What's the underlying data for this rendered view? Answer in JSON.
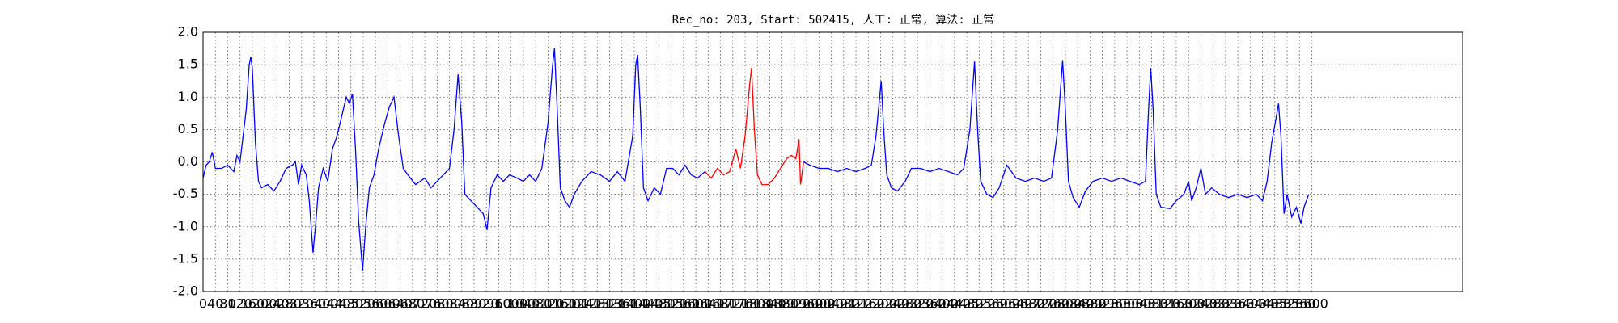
{
  "chart_data": {
    "type": "line",
    "title": "Rec_no: 203, Start: 502415, 人工: 正常, 算法: 正常",
    "xlim": [
      0,
      4090
    ],
    "ylim": [
      -2,
      2
    ],
    "xticks": [
      0,
      40,
      80,
      120,
      160,
      200,
      240,
      280,
      320,
      360,
      400,
      440,
      480,
      520,
      560,
      600,
      640,
      680,
      720,
      760,
      800,
      840,
      880,
      920,
      960,
      1000,
      1040,
      1080,
      1120,
      1160,
      1200,
      1240,
      1280,
      1320,
      1360,
      1400,
      1440,
      1480,
      1520,
      1560,
      1600,
      1640,
      1680,
      1720,
      1760,
      1800,
      1840,
      1880,
      1920,
      1960,
      2000,
      2040,
      2080,
      2120,
      2160,
      2200,
      2240,
      2280,
      2320,
      2360,
      2400,
      2440,
      2480,
      2520,
      2560,
      2600,
      2640,
      2680,
      2720,
      2760,
      2800,
      2840,
      2880,
      2920,
      2960,
      3000,
      3040,
      3080,
      3120,
      3160,
      3200,
      3240,
      3280,
      3320,
      3360,
      3400,
      3440,
      3480,
      3520,
      3560,
      3600
    ],
    "yticks": [
      {
        "value": -2,
        "label": "-2.0"
      },
      -1.5,
      {
        "value": -1,
        "label": "-1.0"
      },
      -0.5,
      {
        "value": 0,
        "label": "0.0"
      },
      0.5,
      {
        "value": 1,
        "label": "1.0"
      },
      1.5,
      {
        "value": 2,
        "label": "2.0"
      }
    ],
    "grid": true,
    "series": [
      {
        "color": "#0000ff",
        "x": [
          0,
          10,
          20,
          30,
          40,
          60,
          80,
          100,
          110,
          120,
          130,
          140,
          150,
          155,
          160,
          170,
          180,
          190,
          210,
          230,
          250,
          270,
          290,
          300,
          310,
          320,
          335,
          345,
          357,
          365,
          375,
          390,
          405,
          420,
          435,
          450,
          465,
          475,
          485,
          495,
          505,
          518,
          528,
          540,
          555,
          570,
          590,
          605,
          620,
          635,
          650,
          665,
          690,
          720,
          740,
          760,
          780,
          800,
          815,
          828,
          840,
          850,
          870,
          890,
          910,
          922,
          935,
          955,
          975,
          995,
          1020,
          1040,
          1060,
          1080,
          1100,
          1120,
          1135,
          1141,
          1150,
          1160,
          1175,
          1190,
          1205,
          1230,
          1260,
          1290,
          1320,
          1345,
          1370,
          1395,
          1405,
          1411,
          1420,
          1430,
          1445,
          1465,
          1485,
          1505,
          1525,
          1545,
          1565,
          1585,
          1605,
          1630
        ],
        "values": [
          -0.25,
          -0.05,
          0.0,
          0.15,
          -0.1,
          -0.1,
          -0.05,
          -0.15,
          0.1,
          0.0,
          0.4,
          0.8,
          1.5,
          1.62,
          1.45,
          0.3,
          -0.3,
          -0.4,
          -0.35,
          -0.45,
          -0.3,
          -0.1,
          -0.05,
          0.0,
          -0.35,
          -0.05,
          -0.2,
          -0.6,
          -1.4,
          -1.0,
          -0.4,
          -0.1,
          -0.3,
          0.2,
          0.4,
          0.7,
          1.0,
          0.9,
          1.05,
          0.2,
          -0.9,
          -1.68,
          -1.0,
          -0.4,
          -0.2,
          0.2,
          0.6,
          0.85,
          1.0,
          0.4,
          -0.1,
          -0.2,
          -0.35,
          -0.25,
          -0.4,
          -0.3,
          -0.2,
          -0.1,
          0.5,
          1.35,
          0.6,
          -0.5,
          -0.6,
          -0.7,
          -0.8,
          -1.05,
          -0.4,
          -0.2,
          -0.3,
          -0.2,
          -0.25,
          -0.3,
          -0.2,
          -0.3,
          -0.1,
          0.6,
          1.5,
          1.75,
          0.8,
          -0.4,
          -0.6,
          -0.7,
          -0.5,
          -0.3,
          -0.15,
          -0.2,
          -0.3,
          -0.15,
          -0.3,
          0.4,
          1.5,
          1.65,
          0.8,
          -0.4,
          -0.6,
          -0.4,
          -0.5,
          -0.1,
          -0.1,
          -0.2,
          -0.05,
          -0.2,
          -0.25,
          -0.15
        ]
      },
      {
        "color": "#ff0000",
        "x": [
          1630,
          1650,
          1670,
          1690,
          1710,
          1730,
          1745,
          1760,
          1775,
          1781,
          1790,
          1800,
          1815,
          1835,
          1855,
          1875,
          1895,
          1910,
          1925,
          1935,
          1940,
          1950
        ],
        "values": [
          -0.15,
          -0.25,
          -0.1,
          -0.2,
          -0.15,
          0.2,
          -0.1,
          0.4,
          1.2,
          1.45,
          0.5,
          -0.2,
          -0.35,
          -0.35,
          -0.25,
          -0.1,
          0.05,
          0.1,
          0.05,
          0.35,
          -0.35,
          0.0
        ]
      },
      {
        "color": "#0000ff",
        "x": [
          1950,
          1970,
          2000,
          2030,
          2060,
          2090,
          2120,
          2150,
          2170,
          2185,
          2202,
          2210,
          2220,
          2235,
          2255,
          2280,
          2300,
          2330,
          2360,
          2390,
          2420,
          2450,
          2470,
          2490,
          2505,
          2515,
          2525,
          2545,
          2565,
          2585,
          2610,
          2640,
          2670,
          2700,
          2730,
          2755,
          2775,
          2791,
          2800,
          2810,
          2825,
          2845,
          2865,
          2890,
          2920,
          2950,
          2980,
          3010,
          3040,
          3060,
          3070,
          3077,
          3085,
          3095,
          3110,
          3140,
          3160,
          3185,
          3200,
          3210,
          3225,
          3240,
          3255,
          3275,
          3300,
          3330,
          3360,
          3390,
          3420,
          3440,
          3455,
          3470,
          3485,
          3492,
          3500,
          3510,
          3520,
          3535,
          3550,
          3565,
          3575,
          3590
        ],
        "values": [
          0.0,
          -0.05,
          -0.1,
          -0.1,
          -0.15,
          -0.1,
          -0.15,
          -0.1,
          -0.05,
          0.4,
          1.25,
          0.5,
          -0.2,
          -0.4,
          -0.45,
          -0.3,
          -0.1,
          -0.1,
          -0.15,
          -0.1,
          -0.15,
          -0.2,
          -0.1,
          0.5,
          1.55,
          0.5,
          -0.3,
          -0.5,
          -0.55,
          -0.4,
          -0.05,
          -0.25,
          -0.3,
          -0.25,
          -0.3,
          -0.25,
          0.5,
          1.57,
          0.8,
          -0.3,
          -0.55,
          -0.7,
          -0.45,
          -0.3,
          -0.25,
          -0.3,
          -0.25,
          -0.3,
          -0.35,
          -0.3,
          0.8,
          1.45,
          0.8,
          -0.5,
          -0.7,
          -0.72,
          -0.6,
          -0.5,
          -0.3,
          -0.6,
          -0.4,
          -0.1,
          -0.5,
          -0.4,
          -0.5,
          -0.55,
          -0.5,
          -0.55,
          -0.5,
          -0.6,
          -0.3,
          0.3,
          0.7,
          0.9,
          0.4,
          -0.8,
          -0.5,
          -0.85,
          -0.7,
          -0.95,
          -0.7,
          -0.5
        ]
      }
    ]
  }
}
